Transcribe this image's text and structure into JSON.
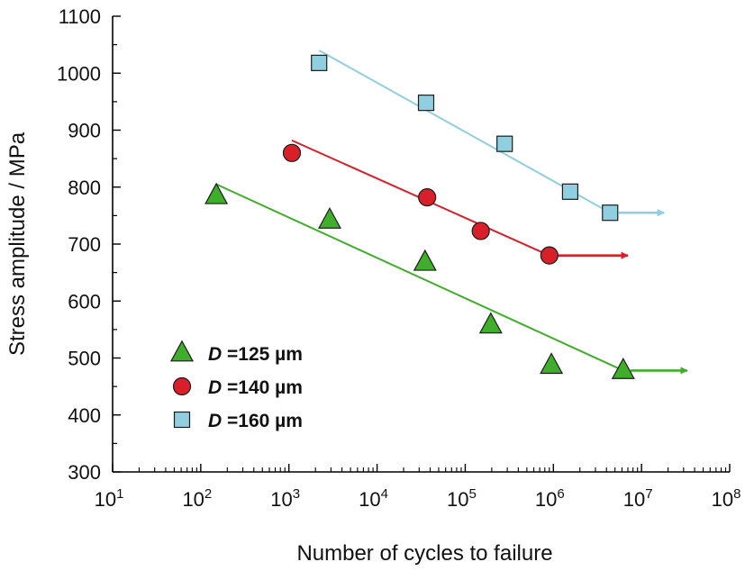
{
  "chart_data": {
    "type": "scatter",
    "title": "",
    "xlabel": "Number of cycles to failure",
    "ylabel": "Stress amplitude / MPa",
    "x_scale": "log",
    "xlim": [
      10,
      100000000
    ],
    "ylim": [
      300,
      1100
    ],
    "x_ticks": [
      {
        "value": 10,
        "base": "10",
        "exp": "1"
      },
      {
        "value": 100,
        "base": "10",
        "exp": "2"
      },
      {
        "value": 1000,
        "base": "10",
        "exp": "3"
      },
      {
        "value": 10000,
        "base": "10",
        "exp": "4"
      },
      {
        "value": 100000,
        "base": "10",
        "exp": "5"
      },
      {
        "value": 1000000,
        "base": "10",
        "exp": "6"
      },
      {
        "value": 10000000,
        "base": "10",
        "exp": "7"
      },
      {
        "value": 100000000,
        "base": "10",
        "exp": "8"
      }
    ],
    "y_ticks": [
      300,
      400,
      500,
      600,
      700,
      800,
      900,
      1000,
      1100
    ],
    "grid": false,
    "legend_position": "bottom-left",
    "series": [
      {
        "legend_prefix": "D",
        "legend_rest": " =125 µm",
        "marker": "triangle",
        "color": "#3fae2a",
        "points": [
          {
            "x": 150,
            "y": 785
          },
          {
            "x": 2900,
            "y": 742
          },
          {
            "x": 35000,
            "y": 668
          },
          {
            "x": 195000,
            "y": 558
          },
          {
            "x": 950000,
            "y": 487
          },
          {
            "x": 6200000,
            "y": 478
          }
        ],
        "fit_line": [
          {
            "x": 150,
            "y": 805
          },
          {
            "x": 6200000,
            "y": 478
          }
        ],
        "runout": {
          "x_start": 7500000,
          "x_end": 33000000,
          "y": 478
        }
      },
      {
        "legend_prefix": "D",
        "legend_rest": " =140 µm",
        "marker": "circle",
        "color": "#d7202a",
        "points": [
          {
            "x": 1080,
            "y": 860
          },
          {
            "x": 37000,
            "y": 782
          },
          {
            "x": 150000,
            "y": 723
          },
          {
            "x": 900000,
            "y": 680
          }
        ],
        "fit_line": [
          {
            "x": 1080,
            "y": 882
          },
          {
            "x": 900000,
            "y": 680
          }
        ],
        "runout": {
          "x_start": 1100000,
          "x_end": 7000000,
          "y": 680
        }
      },
      {
        "legend_prefix": "D",
        "legend_rest": " =160 µm",
        "marker": "square",
        "color": "#8fcfe0",
        "points": [
          {
            "x": 2200,
            "y": 1018
          },
          {
            "x": 36000,
            "y": 948
          },
          {
            "x": 280000,
            "y": 876
          },
          {
            "x": 1550000,
            "y": 792
          },
          {
            "x": 4400000,
            "y": 755
          }
        ],
        "fit_line": [
          {
            "x": 2200,
            "y": 1040
          },
          {
            "x": 4400000,
            "y": 755
          }
        ],
        "runout": {
          "x_start": 5500000,
          "x_end": 18000000,
          "y": 755
        }
      }
    ]
  }
}
